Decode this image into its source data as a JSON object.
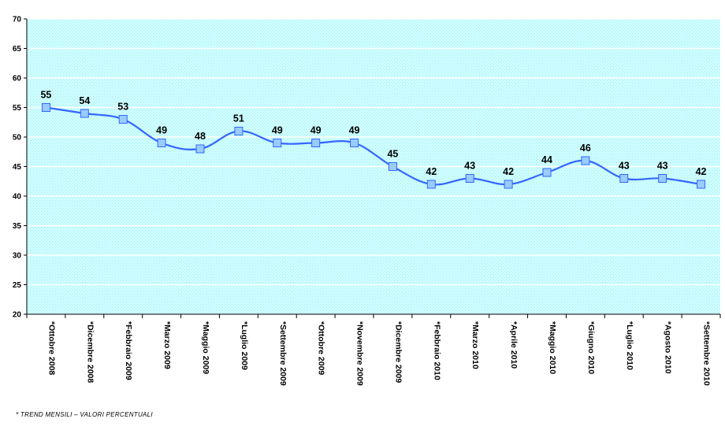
{
  "chart_data": {
    "type": "line",
    "categories": [
      "*Ottobre 2008",
      "*Dicembre 2008",
      "*Febbraio 2009",
      "*Marzo 2009",
      "*Maggio 2009",
      "*Luglio 2009",
      "*Settembre 2009",
      "*Ottobre 2009",
      "*Novembre 2009",
      "*Dicembre 2009",
      "*Febbraio 2010",
      "*Marzo 2010",
      "*Aprile 2010",
      "*Maggio 2010",
      "*Giugno 2010",
      "*Luglio 2010",
      "*Agosto 2010",
      "*Settembre 2010"
    ],
    "series": [
      {
        "values": [
          55,
          54,
          53,
          49,
          48,
          51,
          49,
          49,
          49,
          45,
          42,
          43,
          42,
          44,
          46,
          43,
          43,
          42
        ]
      }
    ],
    "ylim": [
      20,
      70
    ],
    "yticks": [
      "20",
      "25",
      "30",
      "35",
      "40",
      "45",
      "50",
      "55",
      "60",
      "65",
      "70"
    ],
    "grid": true,
    "colors": {
      "plot_background": "#ccffff",
      "gridline": "#ffffff",
      "line": "#3366ff",
      "marker_fill": "#99ccff",
      "marker_edge": "#3366ff",
      "axis": "#000000"
    }
  },
  "footnote": "* TREND MENSILI – VALORI PERCENTUALI"
}
